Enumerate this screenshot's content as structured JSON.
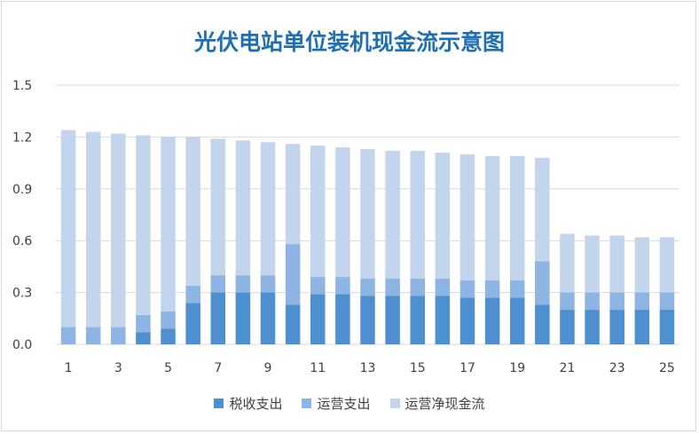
{
  "chart_data": {
    "type": "bar",
    "stacked": true,
    "title": "光伏电站单位装机现金流示意图",
    "xlabel": "",
    "ylabel": "",
    "ylim": [
      0,
      1.5
    ],
    "yticks": [
      "0.0",
      "0.3",
      "0.6",
      "0.9",
      "1.2",
      "1.5"
    ],
    "xtick_labels": [
      "1",
      "3",
      "5",
      "7",
      "9",
      "11",
      "13",
      "15",
      "17",
      "19",
      "21",
      "23",
      "25"
    ],
    "categories": [
      1,
      2,
      3,
      4,
      5,
      6,
      7,
      8,
      9,
      10,
      11,
      12,
      13,
      14,
      15,
      16,
      17,
      18,
      19,
      20,
      21,
      22,
      23,
      24,
      25
    ],
    "grid": true,
    "legend_position": "bottom",
    "series": [
      {
        "name": "税收支出",
        "color": "#4d8fcf",
        "values": [
          0,
          0,
          0,
          0.07,
          0.09,
          0.24,
          0.3,
          0.3,
          0.3,
          0.23,
          0.29,
          0.29,
          0.28,
          0.28,
          0.28,
          0.28,
          0.27,
          0.27,
          0.27,
          0.23,
          0.2,
          0.2,
          0.2,
          0.2,
          0.2
        ]
      },
      {
        "name": "运营支出",
        "color": "#8db4e2",
        "values": [
          0.1,
          0.1,
          0.1,
          0.1,
          0.1,
          0.1,
          0.1,
          0.1,
          0.1,
          0.35,
          0.1,
          0.1,
          0.1,
          0.1,
          0.1,
          0.1,
          0.1,
          0.1,
          0.1,
          0.25,
          0.1,
          0.1,
          0.1,
          0.1,
          0.1
        ]
      },
      {
        "name": "运营净现金流",
        "color": "#c3d5ec",
        "values": [
          1.14,
          1.13,
          1.12,
          1.04,
          1.01,
          0.86,
          0.79,
          0.78,
          0.77,
          0.58,
          0.76,
          0.75,
          0.75,
          0.74,
          0.74,
          0.73,
          0.73,
          0.72,
          0.72,
          0.6,
          0.34,
          0.33,
          0.33,
          0.32,
          0.32
        ]
      }
    ]
  }
}
